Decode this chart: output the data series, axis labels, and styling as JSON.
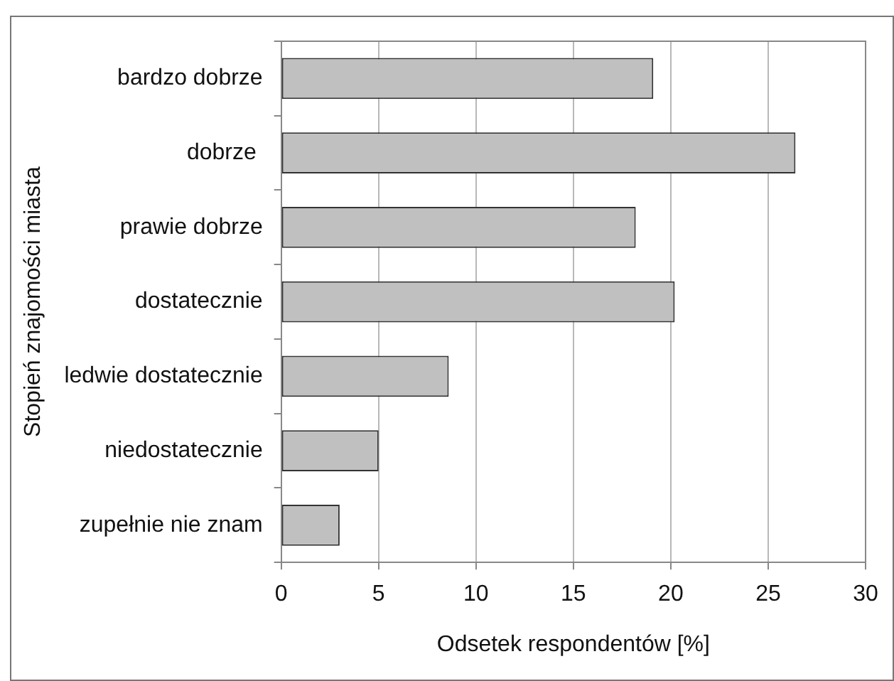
{
  "chart_data": {
    "type": "bar",
    "orientation": "horizontal",
    "xlabel": "Odsetek respondentów [%]",
    "ylabel": "Stopień znajomości miasta",
    "categories": [
      "bardzo dobrze",
      "dobrze ",
      "prawie dobrze",
      "dostatecznie",
      "ledwie dostatecznie",
      "niedostatecznie",
      "zupełnie nie znam"
    ],
    "values": [
      19.1,
      26.4,
      18.2,
      20.2,
      8.6,
      5.0,
      3.0
    ],
    "color": "#c0c0c0",
    "xlim": [
      0,
      30
    ],
    "xticks": [
      0,
      5,
      10,
      15,
      20,
      25,
      30
    ],
    "grid": "x",
    "legend": false
  }
}
